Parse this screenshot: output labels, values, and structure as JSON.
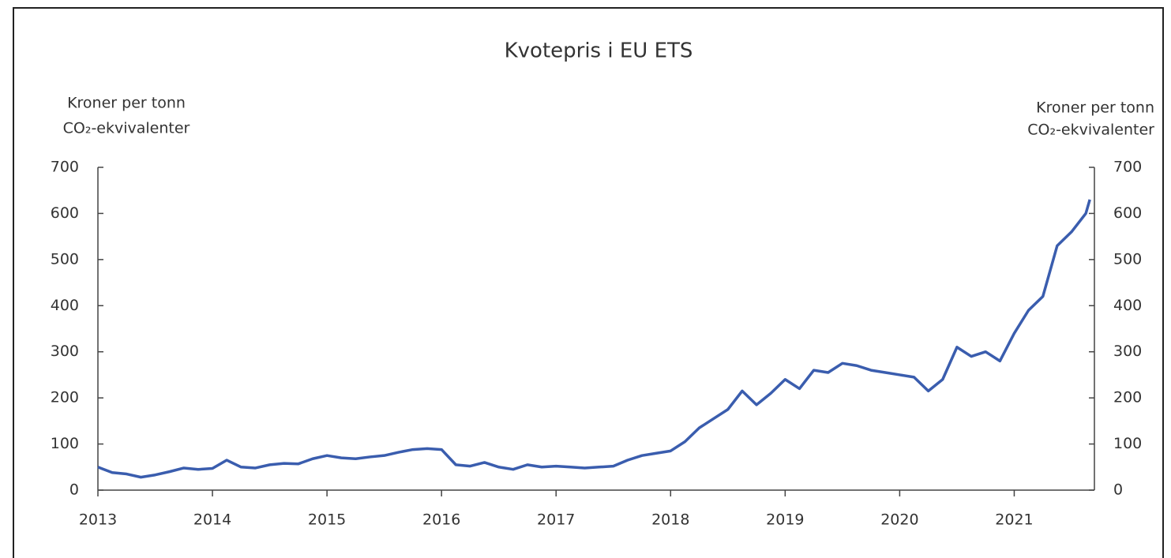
{
  "chart_data": {
    "type": "line",
    "title": "Kvotepris i EU ETS",
    "ylabel": [
      "Kroner per tonn",
      "CO₂-ekvivalenter"
    ],
    "y2label": [
      "Kroner per tonn",
      "CO₂-ekvivalenter"
    ],
    "x": [
      2013.0,
      2013.125,
      2013.25,
      2013.375,
      2013.5,
      2013.625,
      2013.75,
      2013.875,
      2014.0,
      2014.125,
      2014.25,
      2014.375,
      2014.5,
      2014.625,
      2014.75,
      2014.875,
      2015.0,
      2015.125,
      2015.25,
      2015.375,
      2015.5,
      2015.625,
      2015.75,
      2015.875,
      2016.0,
      2016.125,
      2016.25,
      2016.375,
      2016.5,
      2016.625,
      2016.75,
      2016.875,
      2017.0,
      2017.125,
      2017.25,
      2017.375,
      2017.5,
      2017.625,
      2017.75,
      2017.875,
      2018.0,
      2018.125,
      2018.25,
      2018.375,
      2018.5,
      2018.625,
      2018.75,
      2018.875,
      2019.0,
      2019.125,
      2019.25,
      2019.375,
      2019.5,
      2019.625,
      2019.75,
      2019.875,
      2020.0,
      2020.125,
      2020.25,
      2020.375,
      2020.5,
      2020.625,
      2020.75,
      2020.875,
      2021.0,
      2021.125,
      2021.25,
      2021.375,
      2021.5,
      2021.625,
      2021.66
    ],
    "series": [
      {
        "color": "#3a5dae",
        "values": [
          50,
          38,
          35,
          28,
          33,
          40,
          48,
          45,
          47,
          65,
          50,
          48,
          55,
          58,
          57,
          68,
          75,
          70,
          68,
          72,
          75,
          82,
          88,
          90,
          88,
          55,
          52,
          60,
          50,
          45,
          55,
          50,
          52,
          50,
          48,
          50,
          52,
          65,
          75,
          80,
          85,
          105,
          135,
          155,
          175,
          215,
          185,
          210,
          240,
          220,
          260,
          255,
          275,
          270,
          260,
          255,
          250,
          245,
          215,
          240,
          310,
          290,
          300,
          280,
          340,
          390,
          420,
          530,
          560,
          600,
          630
        ]
      }
    ],
    "xlim": [
      2013,
      2021.7
    ],
    "xticks": [
      2013,
      2014,
      2015,
      2016,
      2017,
      2018,
      2019,
      2020,
      2021
    ],
    "ylim": [
      0,
      700
    ],
    "yticks": [
      0,
      100,
      200,
      300,
      400,
      500,
      600,
      700
    ],
    "y2lim": [
      0,
      700
    ],
    "y2ticks": [
      0,
      100,
      200,
      300,
      400,
      500,
      600,
      700
    ]
  }
}
